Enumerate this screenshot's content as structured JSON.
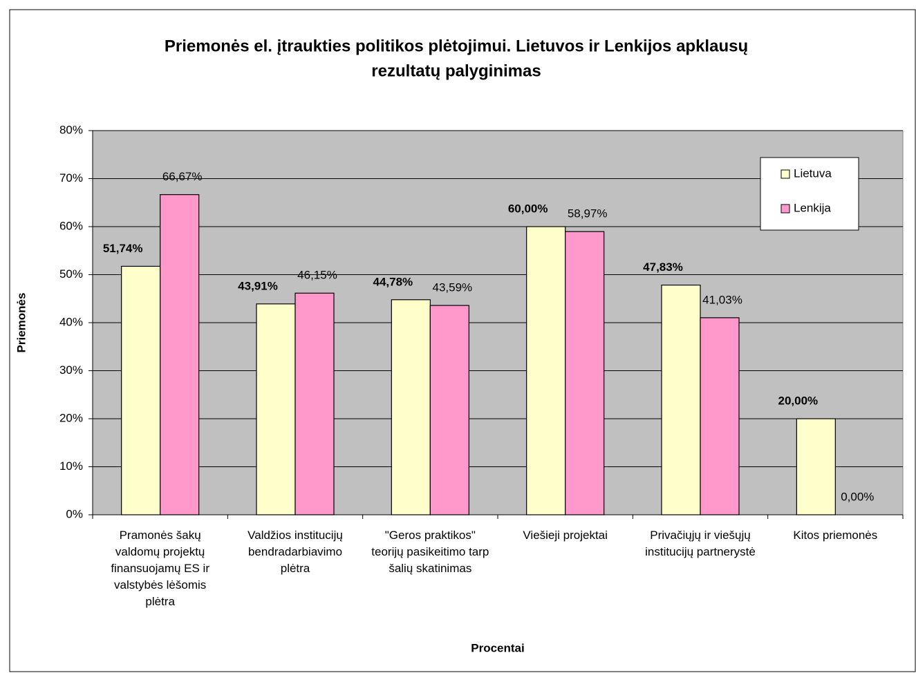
{
  "chart_data": {
    "type": "bar",
    "title": [
      "Priemonės el. įtraukties  politikos plėtojimui. Lietuvos ir Lenkijos apklausų",
      "rezultatų palyginimas"
    ],
    "y_label": "Priemonės",
    "x_label": "Procentai",
    "categories": [
      "Pramonės šakų valdomų projektų finansuojamų ES ir valstybės lėšomis plėtra",
      "Valdžios institucijų bendradarbiavimo plėtra",
      "\"Geros praktikos\" teorijų pasikeitimo tarp šalių skatinimas",
      "Viešieji projektai",
      "Privačiųjų ir viešųjų institucijų partnerystė",
      "Kitos priemonės"
    ],
    "series": [
      {
        "name": "Lietuva",
        "color": "#ffffcc",
        "values": [
          51.74,
          43.91,
          44.78,
          60.0,
          47.83,
          20.0
        ],
        "value_labels": [
          "51,74%",
          "43,91%",
          "44,78%",
          "60,00%",
          "47,83%",
          "20,00%"
        ]
      },
      {
        "name": "Lenkija",
        "color": "#ff99cc",
        "values": [
          66.67,
          46.15,
          43.59,
          58.97,
          41.03,
          0.0
        ],
        "value_labels": [
          "66,67%",
          "46,15%",
          "43,59%",
          "58,97%",
          "41,03%",
          "0,00%"
        ]
      }
    ],
    "ylim": [
      0,
      80
    ],
    "yticks": [
      {
        "value": 0,
        "label": "0%"
      },
      {
        "value": 10,
        "label": "10%"
      },
      {
        "value": 20,
        "label": "20%"
      },
      {
        "value": 30,
        "label": "30%"
      },
      {
        "value": 40,
        "label": "40%"
      },
      {
        "value": 50,
        "label": "50%"
      },
      {
        "value": 60,
        "label": "60%"
      },
      {
        "value": 70,
        "label": "70%"
      },
      {
        "value": 80,
        "label": "80%"
      }
    ],
    "grid": true,
    "plot_background": "#c0c0c0",
    "legend_position": "upper-right"
  }
}
